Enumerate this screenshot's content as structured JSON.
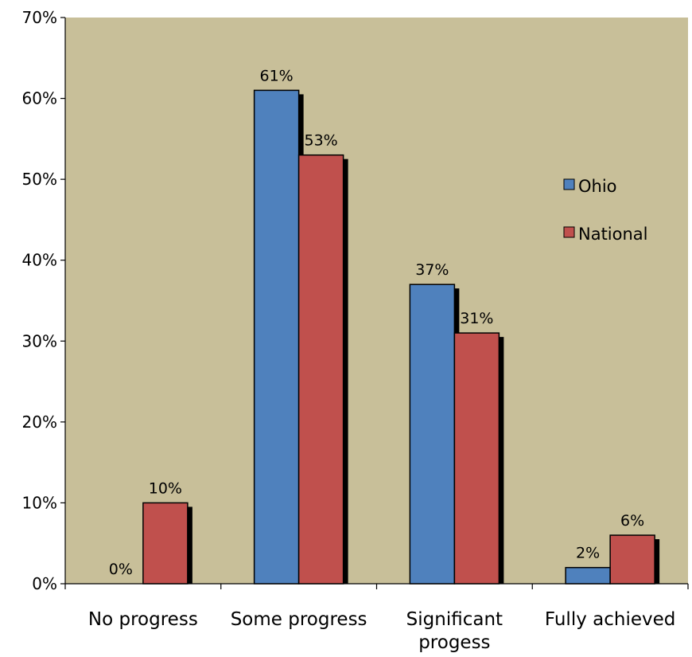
{
  "chart_data": {
    "type": "bar",
    "title": "",
    "xlabel": "",
    "ylabel": "",
    "categories": [
      [
        "No progress"
      ],
      [
        "Some progress"
      ],
      [
        "Significant",
        "progess"
      ],
      [
        "Fully achieved"
      ]
    ],
    "series": [
      {
        "name": "Ohio",
        "values": [
          0,
          61,
          37,
          2
        ],
        "labels": [
          "0%",
          "61%",
          "37%",
          "2%"
        ],
        "color": "#4f81bd"
      },
      {
        "name": "National",
        "values": [
          10,
          53,
          31,
          6
        ],
        "labels": [
          "10%",
          "53%",
          "31%",
          "6%"
        ],
        "color": "#c0504d"
      }
    ],
    "ylim": [
      0,
      70
    ],
    "yticks": [
      0,
      10,
      20,
      30,
      40,
      50,
      60,
      70
    ],
    "ytick_labels": [
      "0%",
      "10%",
      "20%",
      "30%",
      "40%",
      "50%",
      "60%",
      "70%"
    ],
    "plot_background": "#c8bf99",
    "grid": false,
    "legend_position": "right"
  }
}
